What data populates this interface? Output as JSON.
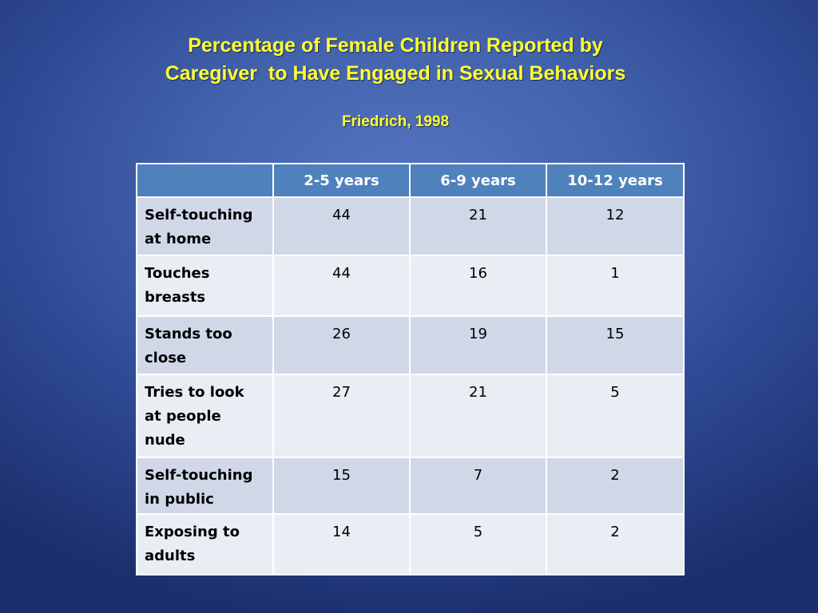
{
  "slide": {
    "title_lines": [
      "Percentage of Female Children Reported by",
      "Caregiver  to Have Engaged in Sexual Behaviors"
    ],
    "subtitle": "Friedrich, 1998"
  },
  "table": {
    "headers": [
      "",
      "2-5 years",
      "6-9 years",
      "10-12 years"
    ],
    "rows": [
      {
        "label": "Self-touching at home",
        "values": [
          "44",
          "21",
          "12"
        ]
      },
      {
        "label": "Touches breasts",
        "values": [
          "44",
          "16",
          "1"
        ]
      },
      {
        "label": "Stands too close",
        "values": [
          "26",
          "19",
          "15"
        ]
      },
      {
        "label": "Tries to look at people nude",
        "values": [
          "27",
          "21",
          "5"
        ]
      },
      {
        "label": "Self-touching in public",
        "values": [
          "15",
          "7",
          "2"
        ]
      },
      {
        "label": "Exposing to adults",
        "values": [
          "14",
          "5",
          "2"
        ]
      }
    ]
  },
  "colors": {
    "title": "#ffff33",
    "header_fill": "#4f81bd",
    "row_band_dark": "#d0d8e8",
    "row_band_light": "#e9edf4",
    "background": "#4262ac"
  }
}
